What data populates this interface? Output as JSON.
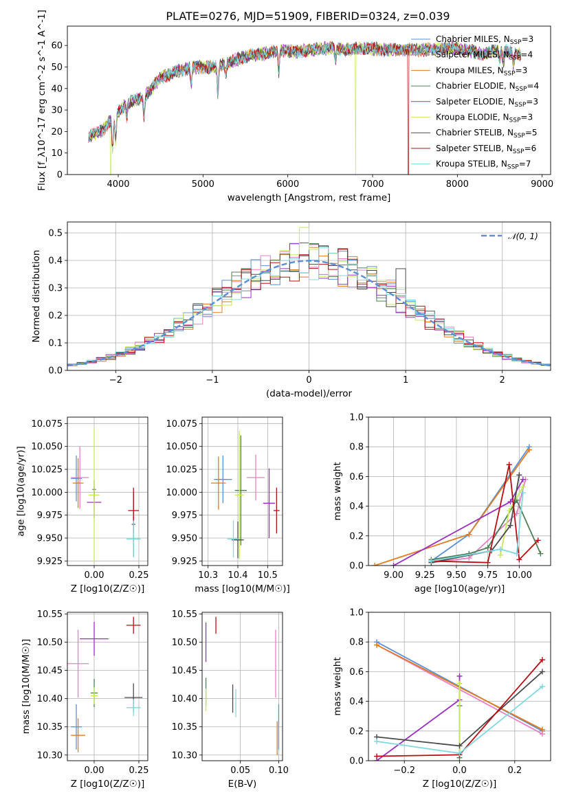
{
  "figure": {
    "title": "PLATE=0276, MJD=51909, FIBERID=0324, z=0.039"
  },
  "models": [
    {
      "name": "Chabrier MILES",
      "nssp": "3",
      "color": "#5b8fd6"
    },
    {
      "name": "Salpeter MILES",
      "nssp": "4",
      "color": "#e87fc3"
    },
    {
      "name": "Kroupa MILES",
      "nssp": "3",
      "color": "#e07b1f"
    },
    {
      "name": "Chabrier ELODIE",
      "nssp": "4",
      "color": "#4f7f56"
    },
    {
      "name": "Salpeter ELODIE",
      "nssp": "3",
      "color": "#9a2fbd"
    },
    {
      "name": "Kroupa ELODIE",
      "nssp": "3",
      "color": "#c6ea5a"
    },
    {
      "name": "Chabrier STELIB",
      "nssp": "5",
      "color": "#4a4a4a"
    },
    {
      "name": "Salpeter STELIB",
      "nssp": "6",
      "color": "#b80d12"
    },
    {
      "name": "Kroupa STELIB",
      "nssp": "7",
      "color": "#7fd9e0"
    }
  ],
  "chart_data": [
    {
      "id": "spectrum",
      "type": "line",
      "xlabel": "wavelength [Angstrom, rest frame]",
      "ylabel": "Flux [f_λ10^-17 erg cm^-2 s^-1 A^-1]",
      "xlim": [
        3400,
        9100
      ],
      "ylim": [
        0,
        69
      ],
      "xticks": [
        4000,
        5000,
        6000,
        7000,
        8000,
        9000
      ],
      "yticks": [
        0,
        10,
        20,
        30,
        40,
        50,
        60
      ],
      "grid": false,
      "legend": "right",
      "x_range_data": [
        3650,
        8750
      ],
      "continuum": [
        [
          3650,
          18
        ],
        [
          3800,
          20
        ],
        [
          3950,
          27
        ],
        [
          4100,
          33
        ],
        [
          4300,
          36
        ],
        [
          4500,
          45
        ],
        [
          4700,
          48
        ],
        [
          4900,
          50
        ],
        [
          5100,
          50
        ],
        [
          5300,
          52
        ],
        [
          5500,
          55
        ],
        [
          5700,
          56
        ],
        [
          5900,
          58
        ],
        [
          6100,
          57
        ],
        [
          6300,
          58
        ],
        [
          6500,
          59
        ],
        [
          6700,
          58
        ],
        [
          6900,
          59
        ],
        [
          7100,
          58
        ],
        [
          7300,
          58
        ],
        [
          7500,
          58
        ],
        [
          7700,
          58
        ],
        [
          7900,
          59
        ],
        [
          8100,
          58
        ],
        [
          8300,
          56
        ],
        [
          8500,
          58
        ],
        [
          8750,
          56
        ]
      ],
      "absorption": [
        [
          3934,
          14
        ],
        [
          3969,
          12
        ],
        [
          4102,
          6
        ],
        [
          4304,
          9
        ],
        [
          4861,
          8
        ],
        [
          5175,
          13
        ],
        [
          5270,
          5
        ],
        [
          5893,
          11
        ],
        [
          6563,
          6
        ],
        [
          8498,
          4
        ],
        [
          8542,
          6
        ],
        [
          8662,
          6
        ]
      ],
      "cutoffs": [
        [
          3910,
          "Kroupa ELODIE"
        ],
        [
          6800,
          "Kroupa ELODIE"
        ],
        [
          7420,
          "Salpeter STELIB"
        ]
      ]
    },
    {
      "id": "residual-histogram",
      "type": "histogram",
      "xlabel": "(data-model)/error",
      "ylabel": "Normed distribution",
      "xlim": [
        -2.5,
        2.5
      ],
      "ylim": [
        0,
        0.54
      ],
      "xticks": [
        -2,
        -1,
        0,
        1,
        2
      ],
      "yticks": [
        0.0,
        0.1,
        0.2,
        0.3,
        0.4,
        0.5
      ],
      "grid": true,
      "legend": "top-right",
      "reference_curve": "N(0,1)",
      "bin_width": 0.1,
      "peak_values": {
        "Kroupa ELODIE": 0.52,
        "Chabrier STELIB": 0.37
      }
    },
    {
      "id": "age-vs-z",
      "type": "errorbar",
      "xlabel": "Z [log10(Z/Z☉)]",
      "ylabel": "age [log10(age/yr)]",
      "xlim": [
        -0.15,
        0.3
      ],
      "ylim": [
        9.92,
        10.082
      ],
      "xticks": [
        0.0,
        0.25
      ],
      "yticks": [
        9.925,
        9.95,
        9.975,
        10.0,
        10.025,
        10.05,
        10.075
      ],
      "grid": true,
      "points": [
        {
          "series": "Chabrier MILES",
          "x": -0.1,
          "xerr": 0.03,
          "y": 10.015,
          "yerr": 0.025
        },
        {
          "series": "Salpeter MILES",
          "x": -0.08,
          "xerr": 0.05,
          "y": 10.016,
          "yerr": 0.034
        },
        {
          "series": "Kroupa MILES",
          "x": -0.09,
          "xerr": 0.03,
          "y": 10.01,
          "yerr": 0.027
        },
        {
          "series": "Chabrier ELODIE",
          "x": 0.0,
          "xerr": 0.01,
          "y": 10.003,
          "yerr": 0.01
        },
        {
          "series": "Salpeter ELODIE",
          "x": 0.0,
          "xerr": 0.04,
          "y": 9.989,
          "yerr": 0.017
        },
        {
          "series": "Kroupa ELODIE",
          "x": 0.0,
          "xerr": 0.03,
          "y": 9.997,
          "yerr": 0.073
        },
        {
          "series": "Chabrier STELIB",
          "x": 0.22,
          "xerr": 0.01,
          "y": 9.965,
          "yerr": 0.035
        },
        {
          "series": "Salpeter STELIB",
          "x": 0.22,
          "xerr": 0.03,
          "y": 9.98,
          "yerr": 0.025
        },
        {
          "series": "Kroupa STELIB",
          "x": 0.22,
          "xerr": 0.04,
          "y": 9.949,
          "yerr": 0.02
        }
      ]
    },
    {
      "id": "age-vs-mass",
      "type": "errorbar",
      "xlabel": "mass [log10(M/M☉)]",
      "xlim": [
        10.28,
        10.55
      ],
      "ylim": [
        9.92,
        10.082
      ],
      "xticks": [
        10.3,
        10.4,
        10.5
      ],
      "yticks": [
        9.925,
        9.95,
        9.975,
        10.0,
        10.025,
        10.05,
        10.075
      ],
      "grid": true,
      "points": [
        {
          "series": "Chabrier MILES",
          "x": 10.35,
          "xerr": 0.03,
          "y": 10.014,
          "yerr": 0.026
        },
        {
          "series": "Salpeter MILES",
          "x": 10.46,
          "xerr": 0.03,
          "y": 10.016,
          "yerr": 0.025
        },
        {
          "series": "Kroupa MILES",
          "x": 10.335,
          "xerr": 0.025,
          "y": 10.01,
          "yerr": 0.029
        },
        {
          "series": "Chabrier ELODIE",
          "x": 10.41,
          "xerr": 0.02,
          "y": 10.002,
          "yerr": 0.06
        },
        {
          "series": "Salpeter ELODIE",
          "x": 10.505,
          "xerr": 0.02,
          "y": 9.988,
          "yerr": 0.038
        },
        {
          "series": "Kroupa ELODIE",
          "x": 10.405,
          "xerr": 0.015,
          "y": 9.997,
          "yerr": 0.07
        },
        {
          "series": "Chabrier STELIB",
          "x": 10.4,
          "xerr": 0.02,
          "y": 9.948,
          "yerr": 0.02
        },
        {
          "series": "Salpeter STELIB",
          "x": 10.53,
          "xerr": 0.01,
          "y": 9.98,
          "yerr": 0.025
        },
        {
          "series": "Kroupa STELIB",
          "x": 10.385,
          "xerr": 0.02,
          "y": 9.949,
          "yerr": 0.02
        }
      ]
    },
    {
      "id": "weight-vs-age",
      "type": "line",
      "xlabel": "age [log10(age/yr)]",
      "ylabel": "mass weight",
      "xlim": [
        8.8,
        10.25
      ],
      "ylim": [
        0,
        1.0
      ],
      "xticks": [
        9.0,
        9.25,
        9.5,
        9.75,
        10.0
      ],
      "yticks": [
        0.0,
        0.2,
        0.4,
        0.6,
        0.8,
        1.0
      ],
      "grid": true,
      "series": [
        {
          "name": "Chabrier MILES",
          "x": [
            9.3,
            9.6,
            10.08
          ],
          "y": [
            0.03,
            0.21,
            0.8
          ]
        },
        {
          "name": "Salpeter MILES",
          "x": [
            9.3,
            9.6,
            9.98,
            10.05
          ],
          "y": [
            0.02,
            0.05,
            0.35,
            0.58
          ]
        },
        {
          "name": "Kroupa MILES",
          "x": [
            8.85,
            9.6,
            10.08
          ],
          "y": [
            0.0,
            0.21,
            0.78
          ]
        },
        {
          "name": "Chabrier ELODIE",
          "x": [
            9.3,
            9.6,
            9.75,
            9.98,
            10.17
          ],
          "y": [
            0.04,
            0.08,
            0.12,
            0.44,
            0.08
          ]
        },
        {
          "name": "Salpeter ELODIE",
          "x": [
            9.0,
            9.93,
            10.03
          ],
          "y": [
            0.0,
            0.43,
            0.58
          ]
        },
        {
          "name": "Kroupa ELODIE",
          "x": [
            9.85,
            9.92,
            10.03
          ],
          "y": [
            0.07,
            0.37,
            0.53
          ]
        },
        {
          "name": "Chabrier STELIB",
          "x": [
            9.3,
            9.78,
            9.93,
            10.0
          ],
          "y": [
            0.02,
            0.1,
            0.27,
            0.61
          ]
        },
        {
          "name": "Salpeter STELIB",
          "x": [
            9.3,
            9.75,
            9.92,
            10.0,
            10.15
          ],
          "y": [
            0.03,
            0.02,
            0.68,
            0.04,
            0.17
          ]
        },
        {
          "name": "Kroupa STELIB",
          "x": [
            9.3,
            9.85,
            9.98,
            10.03
          ],
          "y": [
            0.03,
            0.11,
            0.08,
            0.49
          ]
        }
      ]
    },
    {
      "id": "mass-vs-z",
      "type": "errorbar",
      "xlabel": "Z [log10(Z/Z☉)]",
      "ylabel": "mass [log10(M/M☉)]",
      "xlim": [
        -0.15,
        0.3
      ],
      "ylim": [
        10.29,
        10.553
      ],
      "xticks": [
        0.0,
        0.25
      ],
      "yticks": [
        10.3,
        10.35,
        10.4,
        10.45,
        10.5,
        10.55
      ],
      "grid": true,
      "points": [
        {
          "series": "Chabrier MILES",
          "x": -0.1,
          "xerr": 0.03,
          "y": 10.35,
          "yerr": 0.04
        },
        {
          "series": "Salpeter MILES",
          "x": -0.09,
          "xerr": 0.06,
          "y": 10.462,
          "yerr": 0.06
        },
        {
          "series": "Kroupa MILES",
          "x": -0.09,
          "xerr": 0.04,
          "y": 10.335,
          "yerr": 0.03
        },
        {
          "series": "Chabrier ELODIE",
          "x": 0.0,
          "xerr": 0.02,
          "y": 10.41,
          "yerr": 0.025
        },
        {
          "series": "Salpeter ELODIE",
          "x": 0.0,
          "xerr": 0.08,
          "y": 10.506,
          "yerr": 0.03
        },
        {
          "series": "Kroupa ELODIE",
          "x": 0.0,
          "xerr": 0.02,
          "y": 10.405,
          "yerr": 0.015
        },
        {
          "series": "Chabrier STELIB",
          "x": 0.22,
          "xerr": 0.05,
          "y": 10.402,
          "yerr": 0.025
        },
        {
          "series": "Salpeter STELIB",
          "x": 0.22,
          "xerr": 0.04,
          "y": 10.53,
          "yerr": 0.015
        },
        {
          "series": "Kroupa STELIB",
          "x": 0.22,
          "xerr": 0.04,
          "y": 10.384,
          "yerr": 0.015
        }
      ]
    },
    {
      "id": "mass-vs-ebv",
      "type": "errorbar",
      "xlabel": "E(B-V)",
      "xlim": [
        0.0,
        0.105
      ],
      "ylim": [
        10.29,
        10.553
      ],
      "xticks": [
        0.05,
        0.1
      ],
      "yticks": [
        10.3,
        10.35,
        10.4,
        10.45,
        10.5,
        10.55
      ],
      "grid": true,
      "points": [
        {
          "series": "Chabrier MILES",
          "x": 0.1,
          "y": 10.35,
          "yerr": 0.04
        },
        {
          "series": "Salpeter MILES",
          "x": 0.096,
          "y": 10.462,
          "yerr": 0.06
        },
        {
          "series": "Kroupa MILES",
          "x": 0.098,
          "y": 10.33,
          "yerr": 0.03
        },
        {
          "series": "Chabrier ELODIE",
          "x": 0.005,
          "y": 10.412,
          "yerr": 0.025
        },
        {
          "series": "Salpeter ELODIE",
          "x": 0.005,
          "y": 10.5,
          "yerr": 0.035
        },
        {
          "series": "Kroupa ELODIE",
          "x": 0.005,
          "y": 10.398,
          "yerr": 0.02
        },
        {
          "series": "Chabrier STELIB",
          "x": 0.04,
          "y": 10.4,
          "yerr": 0.025
        },
        {
          "series": "Salpeter STELIB",
          "x": 0.018,
          "y": 10.53,
          "yerr": 0.015
        },
        {
          "series": "Kroupa STELIB",
          "x": 0.044,
          "y": 10.392,
          "yerr": 0.025
        }
      ]
    },
    {
      "id": "weight-vs-z",
      "type": "line",
      "xlabel": "Z [log10(Z/Z☉)]",
      "ylabel": "mass weight",
      "xlim": [
        -0.33,
        0.33
      ],
      "ylim": [
        0,
        1.0
      ],
      "xticks": [
        -0.2,
        0.0,
        0.2
      ],
      "yticks": [
        0.0,
        0.2,
        0.4,
        0.6,
        0.8,
        1.0
      ],
      "grid": true,
      "series": [
        {
          "name": "Chabrier MILES",
          "x": [
            -0.3,
            0.3
          ],
          "y": [
            0.8,
            0.2
          ]
        },
        {
          "name": "Salpeter MILES",
          "x": [
            -0.3,
            0.3
          ],
          "y": [
            0.78,
            0.18
          ]
        },
        {
          "name": "Kroupa MILES",
          "x": [
            -0.3,
            0.3
          ],
          "y": [
            0.78,
            0.21
          ]
        },
        {
          "name": "Chabrier ELODIE",
          "x": [
            0.0,
            0.0
          ],
          "y": [
            0.37,
            0.02
          ]
        },
        {
          "name": "Salpeter ELODIE",
          "x": [
            -0.3,
            0.0,
            0.0
          ],
          "y": [
            0.0,
            0.41,
            0.57
          ]
        },
        {
          "name": "Kroupa ELODIE",
          "x": [
            0.0,
            0.0
          ],
          "y": [
            0.05,
            0.52
          ]
        },
        {
          "name": "Chabrier STELIB",
          "x": [
            -0.3,
            0.0,
            0.3
          ],
          "y": [
            0.16,
            0.1,
            0.6
          ]
        },
        {
          "name": "Salpeter STELIB",
          "x": [
            -0.3,
            0.0,
            0.3
          ],
          "y": [
            0.03,
            0.04,
            0.68
          ]
        },
        {
          "name": "Kroupa STELIB",
          "x": [
            -0.3,
            0.0,
            0.3
          ],
          "y": [
            0.13,
            0.05,
            0.5
          ]
        }
      ]
    }
  ]
}
